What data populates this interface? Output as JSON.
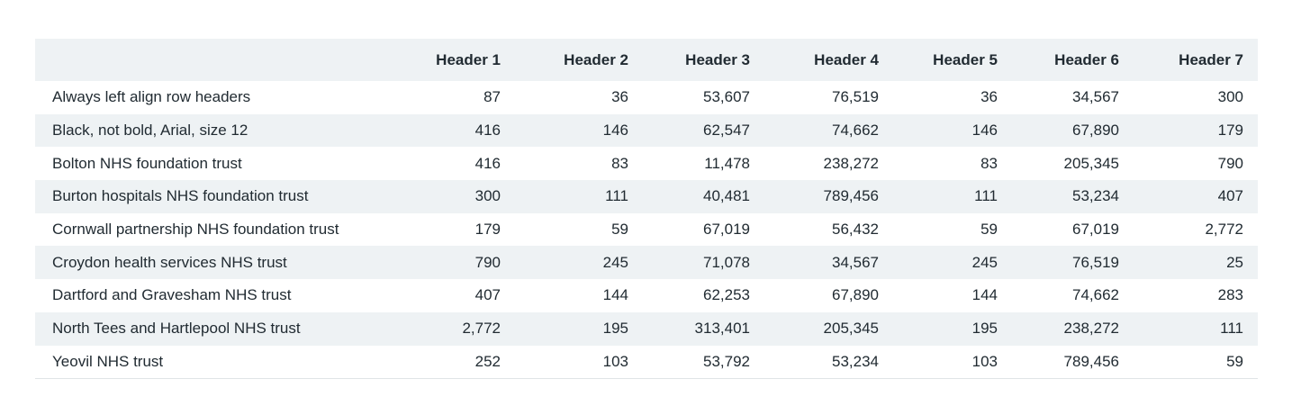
{
  "table": {
    "headers": [
      "",
      "Header 1",
      "Header 2",
      "Header 3",
      "Header 4",
      "Header 5",
      "Header 6",
      "Header 7"
    ],
    "rows": [
      [
        "Always left align row headers",
        "87",
        "36",
        "53,607",
        "76,519",
        "36",
        "34,567",
        "300"
      ],
      [
        "Black, not bold, Arial, size 12",
        "416",
        "146",
        "62,547",
        "74,662",
        "146",
        "67,890",
        "179"
      ],
      [
        "Bolton NHS foundation trust",
        "416",
        "83",
        "11,478",
        "238,272",
        "83",
        "205,345",
        "790"
      ],
      [
        "Burton hospitals NHS foundation trust",
        "300",
        "111",
        "40,481",
        "789,456",
        "111",
        "53,234",
        "407"
      ],
      [
        "Cornwall partnership NHS foundation trust",
        "179",
        "59",
        "67,019",
        "56,432",
        "59",
        "67,019",
        "2,772"
      ],
      [
        "Croydon health services NHS trust",
        "790",
        "245",
        "71,078",
        "34,567",
        "245",
        "76,519",
        "25"
      ],
      [
        "Dartford and Gravesham NHS trust",
        "407",
        "144",
        "62,253",
        "67,890",
        "144",
        "74,662",
        "283"
      ],
      [
        "North Tees and Hartlepool NHS trust",
        "2,772",
        "195",
        "313,401",
        "205,345",
        "195",
        "238,272",
        "111"
      ],
      [
        "Yeovil NHS trust",
        "252",
        "103",
        "53,792",
        "53,234",
        "103",
        "789,456",
        "59"
      ]
    ],
    "colors": {
      "header_bg": "#eef2f4",
      "stripe_bg": "#eef2f4",
      "text": "#212b32"
    }
  }
}
